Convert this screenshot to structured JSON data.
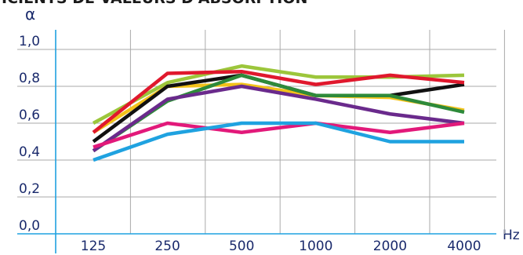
{
  "chart_data": {
    "type": "line",
    "title": "ICIENTS DE VALEURS D'ABSORPTION",
    "ylabel": "α",
    "xlabel": "Hz",
    "categories": [
      "125",
      "250",
      "500",
      "1000",
      "2000",
      "4000"
    ],
    "y_ticks": [
      "0,0",
      "0,2",
      "0,4",
      "0,6",
      "0,8",
      "1,0"
    ],
    "ylim": [
      0,
      1.0
    ],
    "grid": true,
    "series": [
      {
        "color": "#9cc63b",
        "values": [
          0.6,
          0.82,
          0.91,
          0.85,
          0.85,
          0.86
        ]
      },
      {
        "color": "#f2c21a",
        "values": [
          0.55,
          0.8,
          0.81,
          0.75,
          0.74,
          0.67
        ]
      },
      {
        "color": "#111111",
        "values": [
          0.5,
          0.8,
          0.86,
          0.75,
          0.75,
          0.81
        ]
      },
      {
        "color": "#e0182d",
        "values": [
          0.55,
          0.87,
          0.88,
          0.81,
          0.86,
          0.82
        ]
      },
      {
        "color": "#2e8a3a",
        "values": [
          0.45,
          0.72,
          0.86,
          0.75,
          0.75,
          0.66
        ]
      },
      {
        "color": "#6a2a8c",
        "values": [
          0.45,
          0.73,
          0.8,
          0.73,
          0.65,
          0.6
        ]
      },
      {
        "color": "#e2197a",
        "values": [
          0.47,
          0.6,
          0.55,
          0.6,
          0.55,
          0.6
        ]
      },
      {
        "color": "#1fa2e0",
        "values": [
          0.4,
          0.54,
          0.6,
          0.6,
          0.5,
          0.5
        ]
      }
    ]
  },
  "colors": {
    "axis": "#1fa2e0",
    "grid": "#aaaaaa",
    "text": "#1a2a6c"
  }
}
